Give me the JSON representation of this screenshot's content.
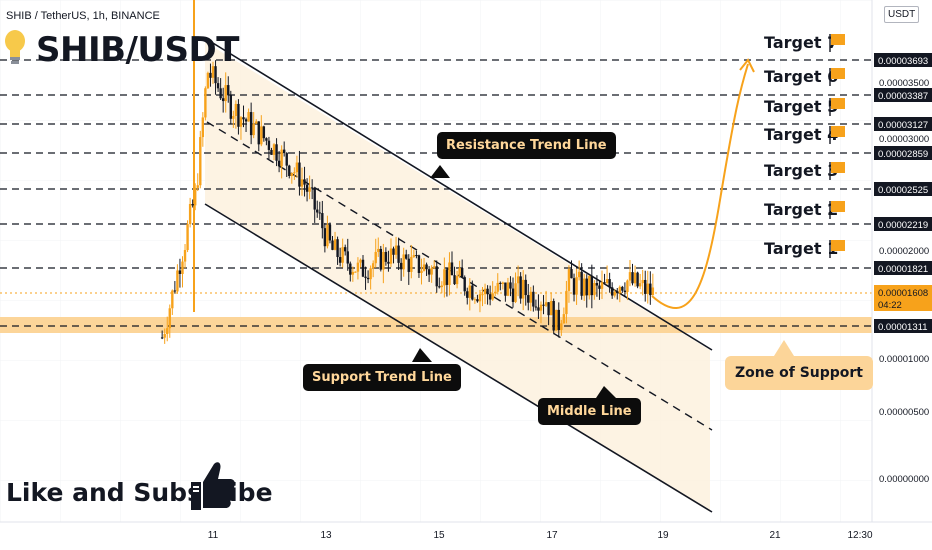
{
  "header": {
    "symbol_line": "SHIB / TetherUS, 1h, BINANCE",
    "title": "SHIB/USDT",
    "unit_badge": "USDT",
    "bulb_icon": "lightbulb-icon"
  },
  "footer": {
    "text": "Like and Subscribe",
    "thumb_icon": "thumbs-up-icon"
  },
  "callouts": {
    "resistance": "Resistance Trend Line",
    "support": "Support Trend Line",
    "middle": "Middle Line",
    "zone": "Zone of Support"
  },
  "colors": {
    "accent": "#f7a21b",
    "zone": "#fcd599",
    "candle_up": "#f7a21b",
    "candle_down": "#131722",
    "channel_fill": "#fdf1de"
  },
  "chart_data": {
    "type": "candlestick",
    "x_ticks": [
      "11",
      "13",
      "15",
      "17",
      "19",
      "21",
      "12:30"
    ],
    "y_tick_labels": [
      "0.00003500",
      "0.00003000",
      "0.00002000",
      "0.00001000",
      "0.00000500",
      "0.00000000"
    ],
    "price_levels": [
      {
        "label": "Target 7",
        "value": "0.00003693"
      },
      {
        "label": "Target 6",
        "value": "0.00003387"
      },
      {
        "label": "Target 5",
        "value": "0.00003127"
      },
      {
        "label": "Target 4",
        "value": "0.00002859"
      },
      {
        "label": "Target 3",
        "value": "0.00002525"
      },
      {
        "label": "Target 2",
        "value": "0.00002219"
      },
      {
        "label": "Target 1",
        "value": "0.00001821"
      }
    ],
    "current_price": "0.00001608",
    "countdown": "04:22",
    "support_level": "0.00001311",
    "series": [
      {
        "x": 10.1,
        "y": 1.2
      },
      {
        "x": 10.7,
        "y": 2.5
      },
      {
        "x": 10.9,
        "y": 3.6
      },
      {
        "x": 11.3,
        "y": 3.3
      },
      {
        "x": 11.7,
        "y": 3.1
      },
      {
        "x": 12.1,
        "y": 2.9
      },
      {
        "x": 12.6,
        "y": 2.6
      },
      {
        "x": 13.1,
        "y": 2.0
      },
      {
        "x": 13.6,
        "y": 1.8
      },
      {
        "x": 14.1,
        "y": 1.95
      },
      {
        "x": 14.6,
        "y": 1.85
      },
      {
        "x": 15.2,
        "y": 1.75
      },
      {
        "x": 15.8,
        "y": 1.6
      },
      {
        "x": 16.3,
        "y": 1.65
      },
      {
        "x": 16.9,
        "y": 1.55
      },
      {
        "x": 17.1,
        "y": 1.3
      },
      {
        "x": 17.3,
        "y": 1.7
      },
      {
        "x": 17.8,
        "y": 1.62
      },
      {
        "x": 18.3,
        "y": 1.72
      },
      {
        "x": 18.8,
        "y": 1.6
      }
    ]
  }
}
